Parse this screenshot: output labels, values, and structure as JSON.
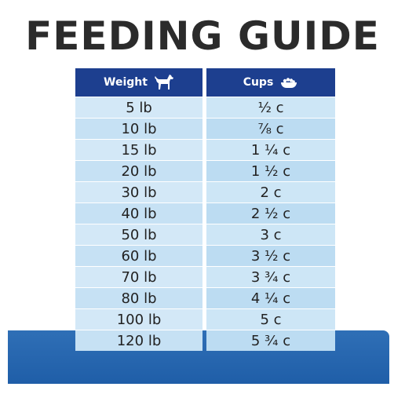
{
  "title": "FEEDING GUIDE",
  "colors": {
    "header": "#1d3f8f",
    "band": "#2a69b2",
    "row_light": "#d3e8f7"
  },
  "table": {
    "headers": {
      "weight": "Weight",
      "weight_icon": "dog-icon",
      "cups": "Cups",
      "cups_icon": "food-bowl-icon"
    },
    "rows": [
      {
        "weight": "5 lb",
        "cups": "½ c"
      },
      {
        "weight": "10 lb",
        "cups": "⅞ c"
      },
      {
        "weight": "15 lb",
        "cups": "1 ¼ c"
      },
      {
        "weight": "20 lb",
        "cups": "1 ½ c"
      },
      {
        "weight": "30 lb",
        "cups": "2 c"
      },
      {
        "weight": "40 lb",
        "cups": "2 ½ c"
      },
      {
        "weight": "50 lb",
        "cups": "3 c"
      },
      {
        "weight": "60 lb",
        "cups": "3 ½ c"
      },
      {
        "weight": "70 lb",
        "cups": "3 ¾ c"
      },
      {
        "weight": "80 lb",
        "cups": "4 ¼ c"
      },
      {
        "weight": "100 lb",
        "cups": "5 c"
      },
      {
        "weight": "120 lb",
        "cups": "5 ¾ c"
      }
    ]
  }
}
